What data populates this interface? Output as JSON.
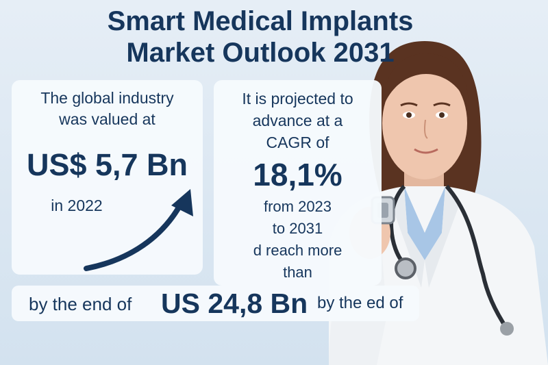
{
  "title": {
    "line1": "Smart Medical Implants",
    "line2": "Market Outlook 2031"
  },
  "left_card": {
    "intro_line1": "The global industry",
    "intro_line2": "was valued at",
    "value": "US$ 5,7 Bn",
    "year": "in 2022"
  },
  "right_card": {
    "line1": "It is projected to",
    "line2": "advance at a",
    "line3": "CAGR of",
    "cagr": "18,1%",
    "line4": "from 2023",
    "line5": "to 2031",
    "line6": "d reach more",
    "line7": "than"
  },
  "bottom": {
    "prefix": "by the end of",
    "value": "US 24,8 Bn",
    "suffix": "by the ed of"
  },
  "colors": {
    "text": "#16365c",
    "background": "#e6eef6",
    "card": "#f6fafd"
  }
}
